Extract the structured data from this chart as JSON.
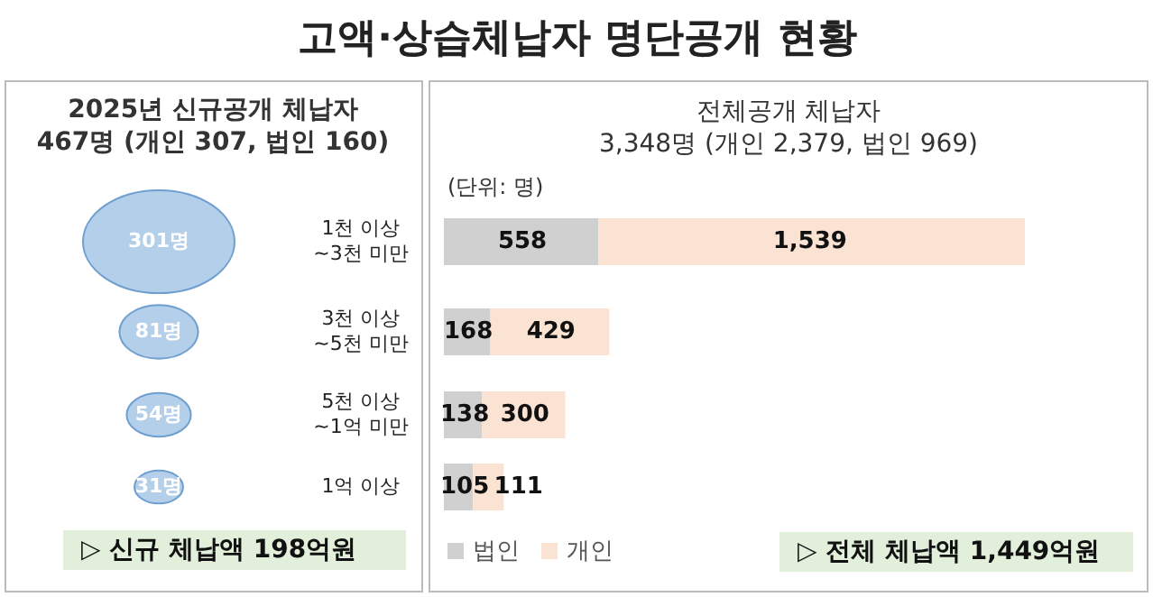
{
  "chart_data": [
    {
      "type": "other",
      "title": "고액·상습체납자 명단공개 현황"
    },
    {
      "type": "other",
      "subtitle": "2025년 신규공개 체납자\n467명 (개인 307, 법인 160)",
      "categories": [
        "1천 이상\n~3천 미만",
        "3천 이상\n~5천 미만",
        "5천 이상\n~1억 미만",
        "1억 이상"
      ],
      "values": [
        301,
        81,
        54,
        31
      ],
      "value_labels": [
        "301명",
        "81명",
        "54명",
        "31명"
      ],
      "color": "#b4cfe9",
      "annotations": [
        "▷ 신규 체납액 198억원"
      ]
    },
    {
      "type": "bar",
      "orientation": "horizontal",
      "stacked": true,
      "title": "전체공개 체납자",
      "subtitle": "3,348명 (개인 2,379, 법인 969)",
      "categories": [
        null,
        null,
        null,
        null
      ],
      "legend": "bottom left",
      "series": [
        {
          "name": "법인",
          "color": "#d0d0d0",
          "values": [
            558,
            168,
            138,
            105
          ],
          "value_labels": [
            "558",
            "168",
            "138",
            "105"
          ]
        },
        {
          "name": "개인",
          "color": "#fbe3d4",
          "values": [
            1539,
            429,
            300,
            111
          ],
          "value_labels": [
            "1,539",
            "429",
            "300",
            "111"
          ]
        }
      ],
      "annotations": [
        "(단위: 명)",
        "▷ 전체 체납액 1,449억원"
      ]
    }
  ]
}
